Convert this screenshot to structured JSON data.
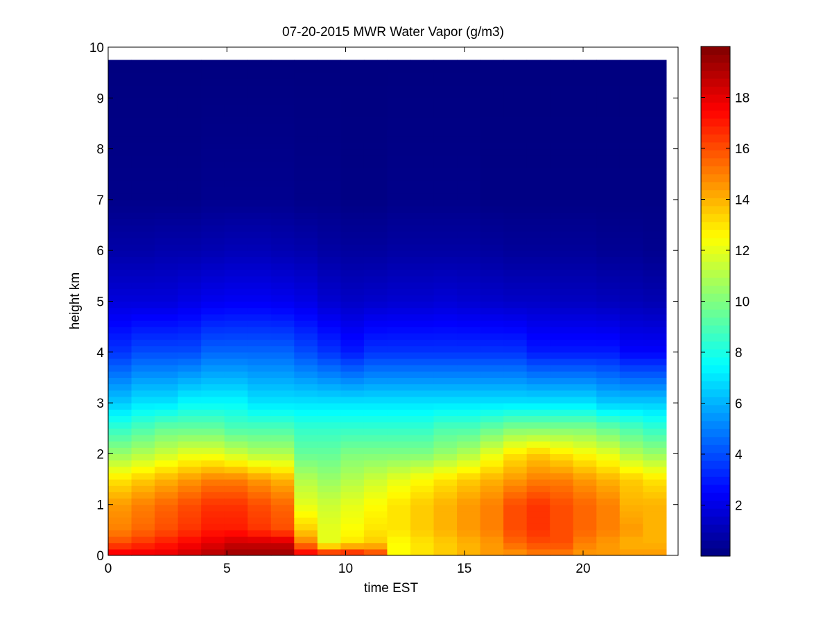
{
  "chart_data": {
    "type": "heatmap",
    "title": "07-20-2015 MWR Water Vapor (g/m3)",
    "xlabel": "time EST",
    "ylabel": "height km",
    "xlim": [
      0,
      24
    ],
    "ylim": [
      0,
      10
    ],
    "x_ticks": [
      "0",
      "5",
      "10",
      "15",
      "20"
    ],
    "y_ticks": [
      "0",
      "1",
      "2",
      "3",
      "4",
      "5",
      "6",
      "7",
      "8",
      "9",
      "10"
    ],
    "x_tick_values": [
      0,
      5,
      10,
      15,
      20
    ],
    "y_tick_values": [
      0,
      1,
      2,
      3,
      4,
      5,
      6,
      7,
      8,
      9,
      10
    ],
    "colormap": "jet",
    "colorbar": {
      "range": [
        0,
        20
      ],
      "ticks": [
        "2",
        "4",
        "6",
        "8",
        "10",
        "12",
        "14",
        "16",
        "18"
      ],
      "tick_values": [
        2,
        4,
        6,
        8,
        10,
        12,
        14,
        16,
        18
      ]
    },
    "data_extent": {
      "x": [
        0,
        23.5
      ],
      "y": [
        0,
        9.75
      ]
    },
    "time_hours": [
      0.5,
      1.5,
      2.5,
      3.5,
      4.5,
      5.5,
      6.5,
      7.5,
      8.5,
      9.5,
      10.5,
      11.5,
      12.5,
      13.5,
      14.5,
      15.5,
      16.5,
      17.5,
      18.5,
      19.5,
      20.5,
      21.5,
      22.5,
      23.5
    ],
    "profile_heights_km": [
      0.0,
      0.25,
      0.5,
      1.0,
      1.5,
      2.0,
      2.5,
      3.0,
      4.0,
      5.0,
      6.0,
      7.0,
      9.75
    ],
    "values": [
      [
        18.0,
        18.0,
        18.0,
        18.5,
        19.0,
        19.5,
        19.5,
        19.5,
        18.0,
        17.5,
        17.5,
        16.5,
        12.5,
        13.0,
        13.5,
        14.0,
        14.5,
        14.5,
        15.0,
        15.0,
        14.5,
        14.5,
        14.5,
        14.5
      ],
      [
        16.0,
        16.5,
        17.0,
        17.5,
        18.0,
        18.5,
        18.5,
        18.5,
        15.0,
        12.0,
        13.0,
        13.5,
        12.5,
        13.0,
        13.5,
        14.0,
        14.5,
        15.5,
        16.0,
        16.0,
        15.0,
        14.5,
        14.0,
        14.0
      ],
      [
        15.0,
        15.5,
        16.0,
        16.5,
        17.0,
        17.0,
        16.5,
        16.0,
        13.5,
        12.0,
        12.5,
        13.0,
        13.0,
        13.5,
        14.0,
        14.5,
        15.0,
        16.0,
        16.5,
        16.0,
        15.5,
        15.0,
        14.5,
        14.0
      ],
      [
        14.5,
        15.0,
        15.5,
        16.0,
        16.5,
        16.5,
        16.0,
        15.5,
        12.0,
        11.5,
        12.0,
        12.5,
        13.0,
        13.5,
        14.0,
        14.5,
        15.0,
        16.0,
        16.5,
        16.0,
        15.5,
        15.0,
        14.0,
        14.0
      ],
      [
        13.0,
        13.5,
        14.0,
        14.5,
        15.0,
        15.0,
        14.5,
        14.0,
        11.0,
        10.5,
        11.0,
        11.5,
        12.0,
        12.5,
        13.0,
        13.5,
        14.0,
        14.5,
        15.0,
        15.0,
        14.5,
        14.0,
        13.5,
        13.0
      ],
      [
        10.5,
        11.0,
        11.5,
        12.0,
        12.0,
        11.5,
        11.0,
        11.0,
        9.5,
        9.5,
        10.0,
        10.0,
        10.0,
        10.0,
        10.5,
        11.0,
        12.0,
        13.0,
        13.5,
        13.0,
        12.5,
        12.0,
        11.0,
        10.5
      ],
      [
        8.5,
        9.0,
        9.5,
        9.5,
        9.5,
        9.0,
        9.0,
        9.0,
        8.5,
        8.5,
        8.5,
        8.5,
        8.5,
        8.5,
        9.0,
        9.0,
        9.5,
        10.0,
        10.0,
        10.0,
        10.0,
        9.5,
        9.0,
        8.5
      ],
      [
        6.5,
        7.0,
        7.0,
        7.5,
        7.5,
        7.5,
        7.0,
        7.0,
        7.0,
        7.0,
        7.0,
        7.0,
        7.0,
        7.0,
        7.0,
        7.0,
        7.0,
        7.0,
        7.0,
        7.0,
        7.0,
        6.5,
        6.5,
        6.5
      ],
      [
        3.5,
        4.0,
        4.0,
        4.0,
        4.5,
        4.5,
        4.5,
        4.5,
        4.0,
        3.5,
        3.0,
        3.5,
        3.5,
        3.5,
        3.5,
        3.5,
        3.5,
        3.5,
        3.0,
        3.0,
        3.0,
        3.0,
        2.5,
        2.5
      ],
      [
        1.8,
        1.8,
        1.8,
        2.0,
        2.2,
        2.3,
        2.3,
        2.2,
        2.0,
        1.6,
        1.4,
        1.5,
        1.6,
        1.6,
        1.7,
        1.6,
        1.5,
        1.4,
        1.4,
        1.3,
        1.3,
        1.2,
        1.1,
        1.0
      ],
      [
        0.8,
        0.8,
        0.9,
        0.9,
        1.0,
        1.1,
        1.1,
        1.0,
        0.9,
        0.7,
        0.6,
        0.6,
        0.7,
        0.7,
        0.7,
        0.7,
        0.6,
        0.5,
        0.5,
        0.5,
        0.5,
        0.4,
        0.4,
        0.3
      ],
      [
        0.2,
        0.2,
        0.2,
        0.2,
        0.3,
        0.3,
        0.3,
        0.3,
        0.2,
        0.2,
        0.1,
        0.1,
        0.2,
        0.2,
        0.2,
        0.2,
        0.1,
        0.1,
        0.1,
        0.1,
        0.1,
        0.1,
        0.1,
        0.1
      ],
      [
        0.0,
        0.0,
        0.0,
        0.0,
        0.0,
        0.0,
        0.0,
        0.0,
        0.0,
        0.0,
        0.0,
        0.0,
        0.0,
        0.0,
        0.0,
        0.0,
        0.0,
        0.0,
        0.0,
        0.0,
        0.0,
        0.0,
        0.0,
        0.0
      ]
    ]
  }
}
